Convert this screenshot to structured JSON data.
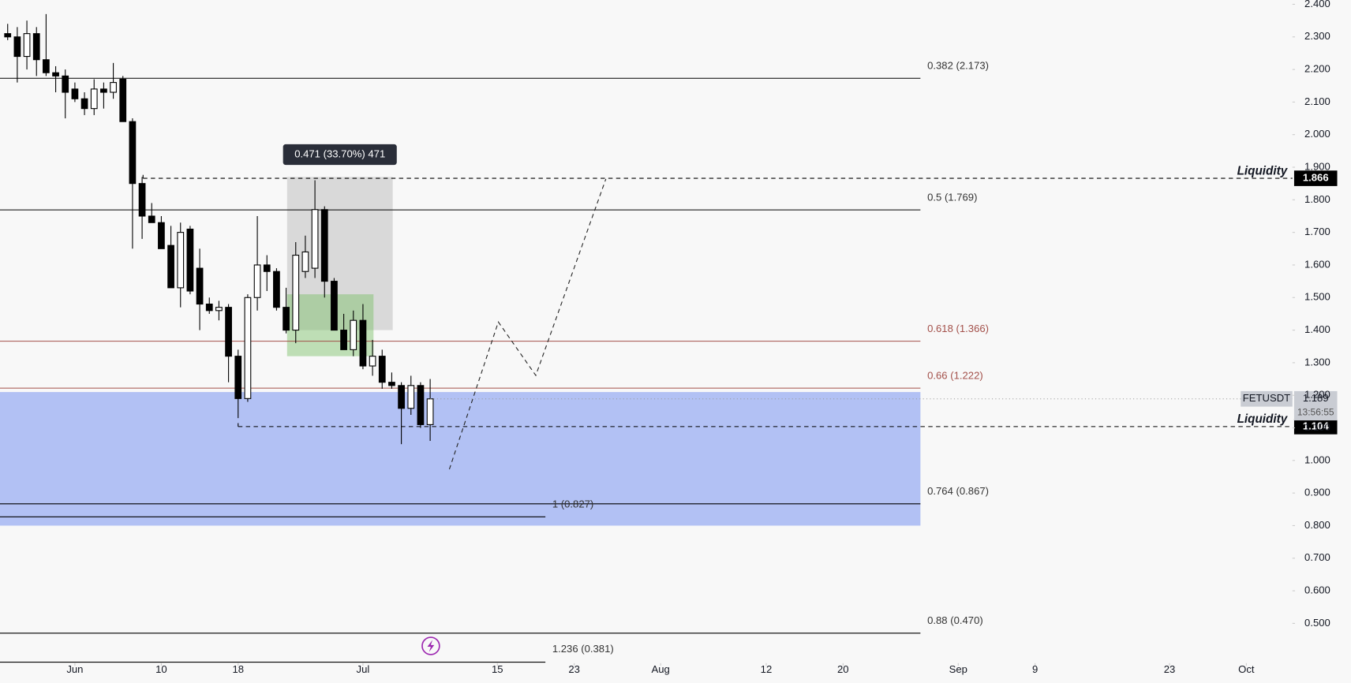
{
  "chart_data": {
    "type": "candlestick",
    "x": [
      -6,
      -5,
      -4,
      -3,
      -2,
      -1,
      0,
      1,
      2,
      3,
      4,
      5,
      6,
      7,
      8,
      9,
      10,
      11,
      12,
      13,
      14,
      15,
      16,
      17,
      18,
      19,
      20,
      21,
      22,
      23,
      24,
      25,
      26,
      27,
      28,
      29,
      30,
      31,
      32,
      33,
      34,
      35,
      36,
      37,
      38
    ],
    "open": [
      2.31,
      2.3,
      2.24,
      2.31,
      2.23,
      2.19,
      2.18,
      2.14,
      2.11,
      2.08,
      2.14,
      2.13,
      2.17,
      2.04,
      1.85,
      1.75,
      1.73,
      1.66,
      1.53,
      1.71,
      1.59,
      1.48,
      1.46,
      1.47,
      1.32,
      1.19,
      1.5,
      1.6,
      1.58,
      1.47,
      1.4,
      1.58,
      1.59,
      1.77,
      1.55,
      1.4,
      1.34,
      1.43,
      1.29,
      1.32,
      1.24,
      1.23,
      1.16,
      1.23,
      1.11
    ],
    "high": [
      2.34,
      2.33,
      2.35,
      2.33,
      2.37,
      2.21,
      2.2,
      2.16,
      2.13,
      2.17,
      2.16,
      2.22,
      2.18,
      2.05,
      1.87,
      1.79,
      1.75,
      1.72,
      1.73,
      1.72,
      1.65,
      1.5,
      1.49,
      1.48,
      1.34,
      1.51,
      1.75,
      1.63,
      1.59,
      1.53,
      1.67,
      1.69,
      1.86,
      1.78,
      1.56,
      1.45,
      1.46,
      1.48,
      1.37,
      1.34,
      1.27,
      1.24,
      1.26,
      1.24,
      1.25
    ],
    "low": [
      2.29,
      2.16,
      2.2,
      2.18,
      2.18,
      2.13,
      2.05,
      2.1,
      2.06,
      2.06,
      2.08,
      2.11,
      2.05,
      1.65,
      1.68,
      1.73,
      1.65,
      1.53,
      1.47,
      1.51,
      1.4,
      1.45,
      1.43,
      1.24,
      1.13,
      1.18,
      1.46,
      1.52,
      1.46,
      1.39,
      1.36,
      1.56,
      1.56,
      1.5,
      1.4,
      1.34,
      1.32,
      1.28,
      1.26,
      1.22,
      1.22,
      1.05,
      1.14,
      1.1,
      1.06
    ],
    "close": [
      2.3,
      2.24,
      2.31,
      2.23,
      2.19,
      2.18,
      2.13,
      2.11,
      2.08,
      2.14,
      2.13,
      2.16,
      2.04,
      1.85,
      1.75,
      1.73,
      1.65,
      1.53,
      1.7,
      1.52,
      1.48,
      1.46,
      1.47,
      1.32,
      1.19,
      1.5,
      1.6,
      1.58,
      1.47,
      1.4,
      1.63,
      1.64,
      1.77,
      1.55,
      1.4,
      1.34,
      1.43,
      1.29,
      1.32,
      1.24,
      1.23,
      1.16,
      1.23,
      1.11,
      1.189
    ],
    "up_color": "#ffffff",
    "down_color": "#000000",
    "xlim": [
      -6.8,
      127.8
    ],
    "xticks": [
      {
        "value": 1,
        "label": "Jun"
      },
      10,
      18,
      {
        "value": 31,
        "label": "Jul"
      },
      {
        "value": 45,
        "label": "15"
      },
      {
        "value": 53,
        "label": "23"
      },
      {
        "value": 62,
        "label": "Aug"
      },
      {
        "value": 73,
        "label": "12"
      },
      {
        "value": 81,
        "label": "20"
      },
      {
        "value": 93,
        "label": "Sep"
      },
      {
        "value": 101,
        "label": "9"
      },
      {
        "value": 115,
        "label": "23"
      },
      {
        "value": 123,
        "label": "Oct"
      }
    ],
    "ylim": [
      0.378,
      2.413
    ],
    "yticks": [
      {
        "value": 0.5,
        "label": "0.500"
      },
      {
        "value": 0.6,
        "label": "0.600"
      },
      {
        "value": 0.7,
        "label": "0.700"
      },
      {
        "value": 0.8,
        "label": "0.800"
      },
      {
        "value": 0.9,
        "label": "0.900"
      },
      {
        "value": 1.0,
        "label": "1.000"
      },
      {
        "value": 1.1,
        "label": "1.100"
      },
      {
        "value": 1.2,
        "label": "1.200"
      },
      {
        "value": 1.3,
        "label": "1.300"
      },
      {
        "value": 1.4,
        "label": "1.400"
      },
      {
        "value": 1.5,
        "label": "1.500"
      },
      {
        "value": 1.6,
        "label": "1.600"
      },
      {
        "value": 1.7,
        "label": "1.700"
      },
      {
        "value": 1.8,
        "label": "1.800"
      },
      {
        "value": 1.9,
        "label": "1.900"
      },
      {
        "value": 2.0,
        "label": "2.000"
      },
      {
        "value": 2.1,
        "label": "2.100"
      },
      {
        "value": 2.2,
        "label": "2.200"
      },
      {
        "value": 2.3,
        "label": "2.300"
      },
      {
        "value": 2.4,
        "label": "2.400"
      }
    ],
    "levels": [
      {
        "label": "0.382 (2.173)",
        "value": 2.173,
        "end": 89.06,
        "color": "#000000"
      },
      {
        "label": "0.5 (1.769)",
        "value": 1.769,
        "end": 89.06,
        "color": "#000000"
      },
      {
        "label": "0.618 (1.366)",
        "value": 1.366,
        "end": 89.06,
        "color": "#a3504a"
      },
      {
        "label": "0.66 (1.222)",
        "value": 1.222,
        "end": 89.06,
        "color": "#a3504a"
      },
      {
        "label": "0.764 (0.867)",
        "value": 0.867,
        "end": 89.06,
        "color": "#000000"
      },
      {
        "label": "1 (0.827)",
        "value": 0.827,
        "end": 50.0,
        "color": "#000000"
      },
      {
        "label": "0.88 (0.470)",
        "value": 0.47,
        "end": 89.06,
        "color": "#000000"
      },
      {
        "label": "1.236 (0.381)",
        "value": 0.381,
        "end": 50.0,
        "color": "#000000"
      }
    ],
    "zones": [
      {
        "x": [
          -6.8,
          89.06
        ],
        "y": [
          0.8,
          1.21
        ],
        "color": "rgba(120,148,240,0.55)"
      },
      {
        "x": [
          23.1,
          34.1
        ],
        "y": [
          1.4,
          1.87
        ],
        "color": "rgba(160,160,160,0.35)"
      },
      {
        "x": [
          23.1,
          32.1
        ],
        "y": [
          1.32,
          1.51
        ],
        "color": "rgba(120,190,100,0.45)"
      }
    ],
    "measure": "0.471 (33.70%) 471",
    "liquidity": [
      {
        "label": "Liquidity",
        "value": 1.866,
        "from": 8.1
      },
      {
        "label": "Liquidity",
        "value": 1.104,
        "from": 18
      }
    ],
    "last": {
      "symbol": "FETUSDT",
      "value": 1.189,
      "countdown": "13:56:55"
    },
    "projection": {
      "x": [
        40,
        45.1,
        49,
        56.3
      ],
      "y": [
        0.973,
        1.425,
        1.261,
        1.864
      ]
    }
  }
}
